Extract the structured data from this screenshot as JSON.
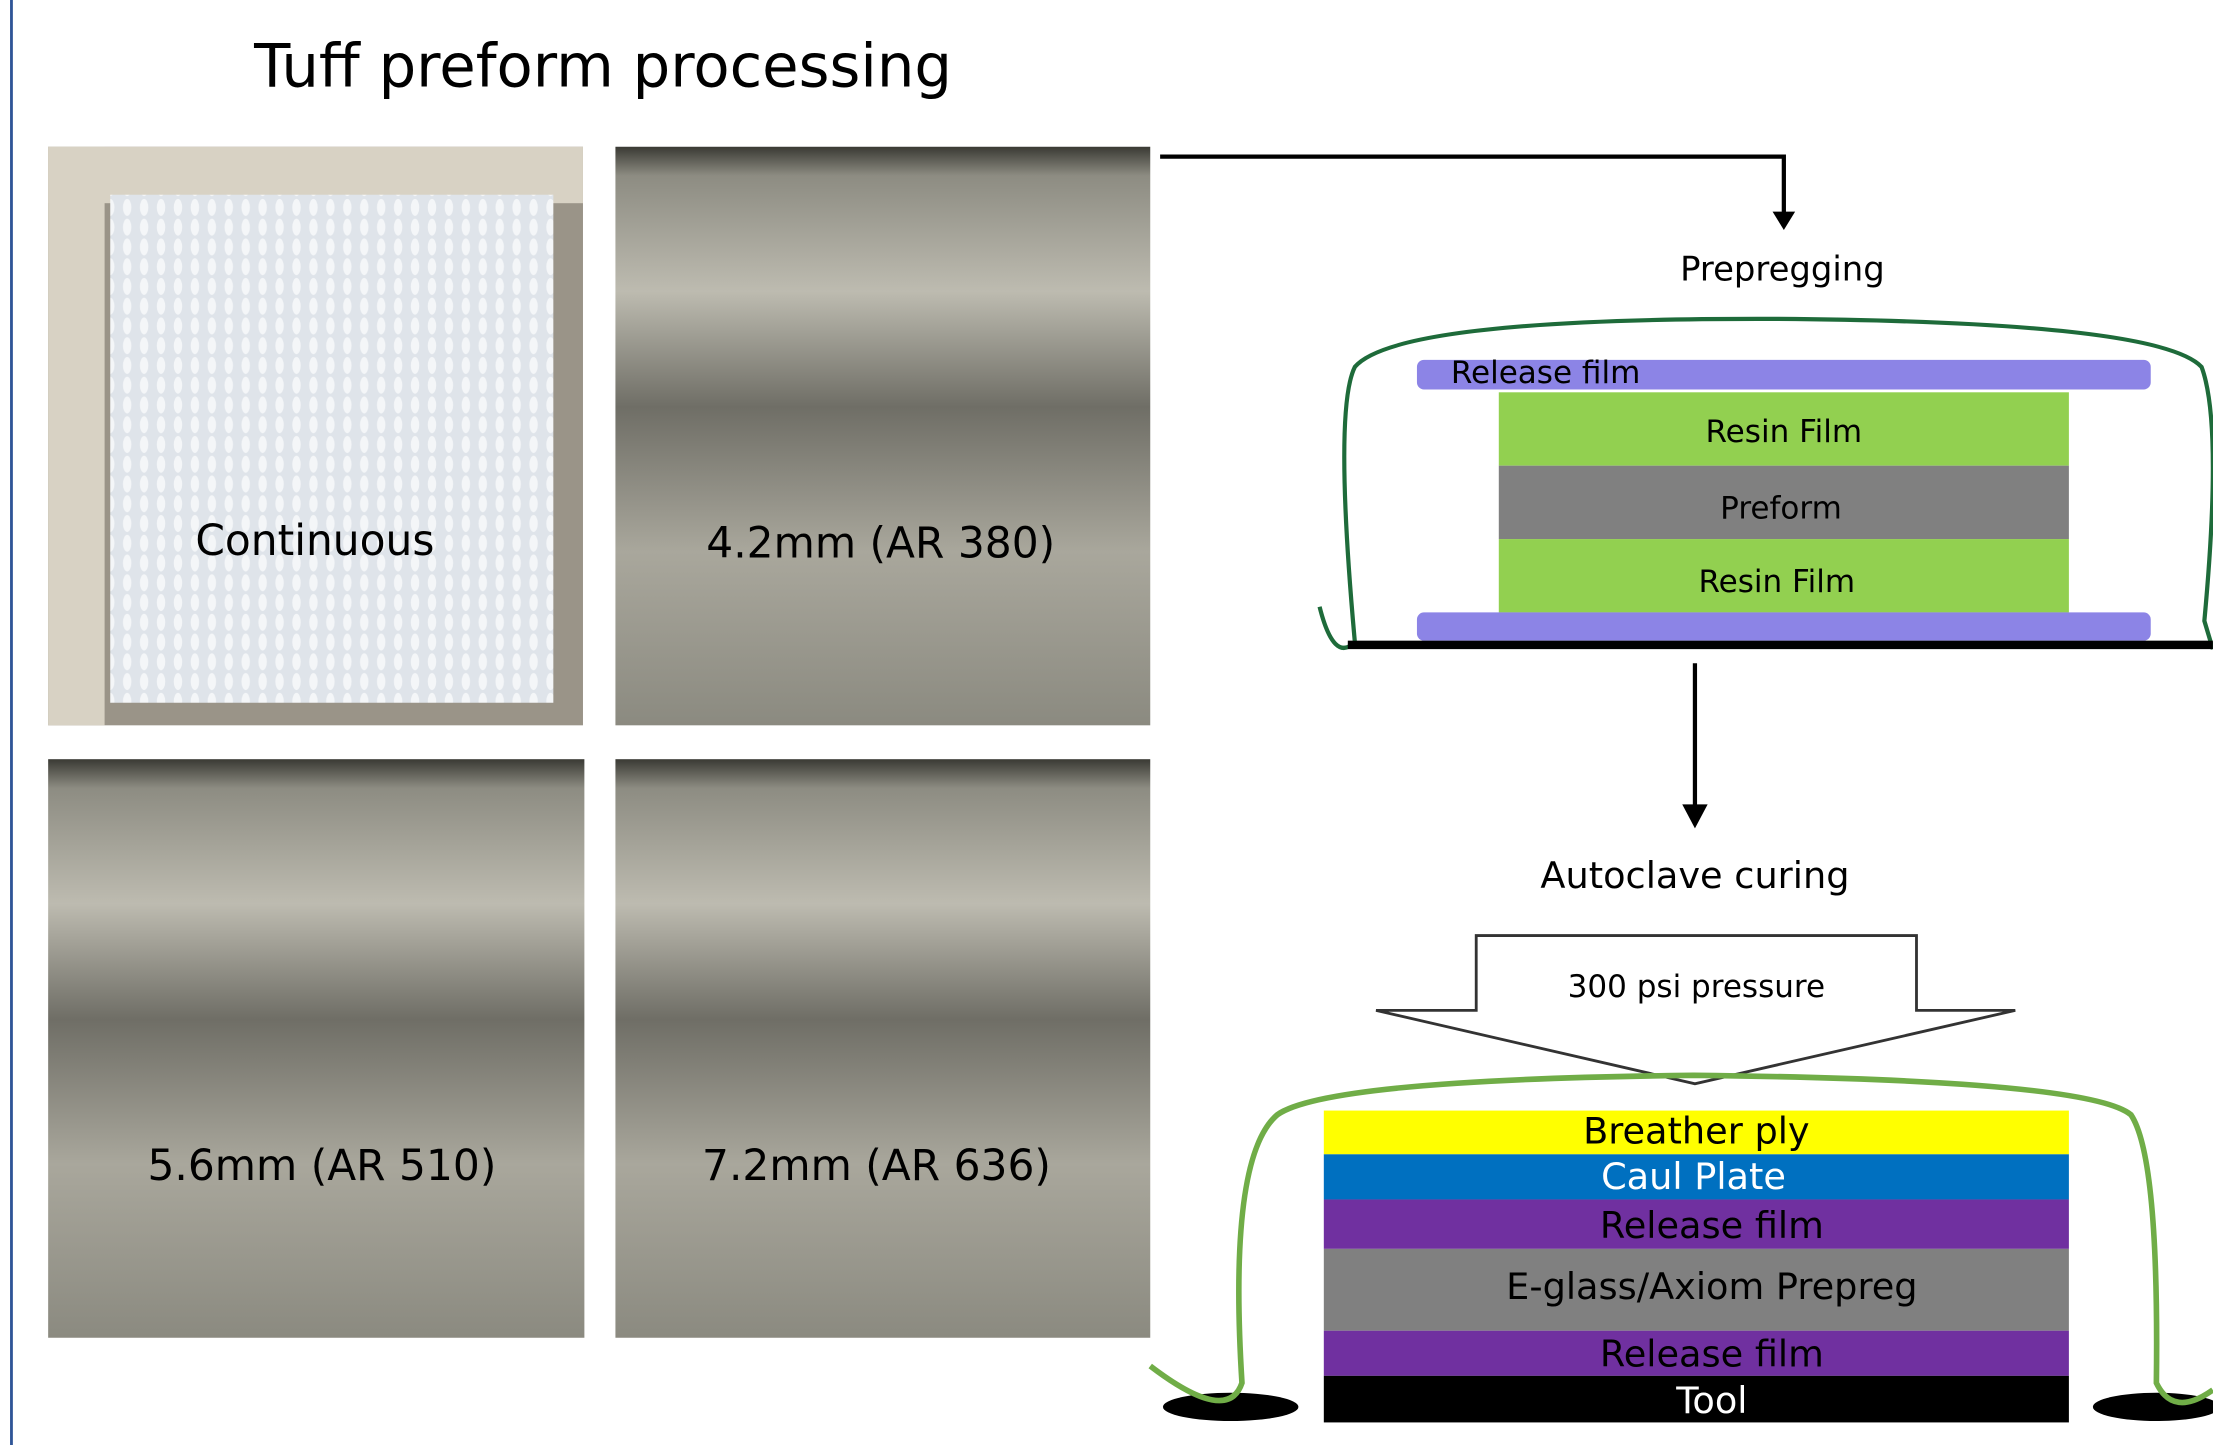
{
  "title": "Tuff preform processing",
  "photos": [
    "Continuous",
    "4.2mm (AR 380)",
    "5.6mm (AR 510)",
    "7.2mm (AR 636)"
  ],
  "prepregging": {
    "label": "Prepregging",
    "layers": [
      "Release film",
      "Resin Film",
      "Preform",
      "Resin Film"
    ]
  },
  "autoclave": {
    "label": "Autoclave curing",
    "pressure": "300 psi pressure",
    "layers": [
      "Breather ply",
      "Caul Plate",
      "Release film",
      "E-glass/Axiom Prepreg",
      "Release film",
      "Tool"
    ]
  }
}
